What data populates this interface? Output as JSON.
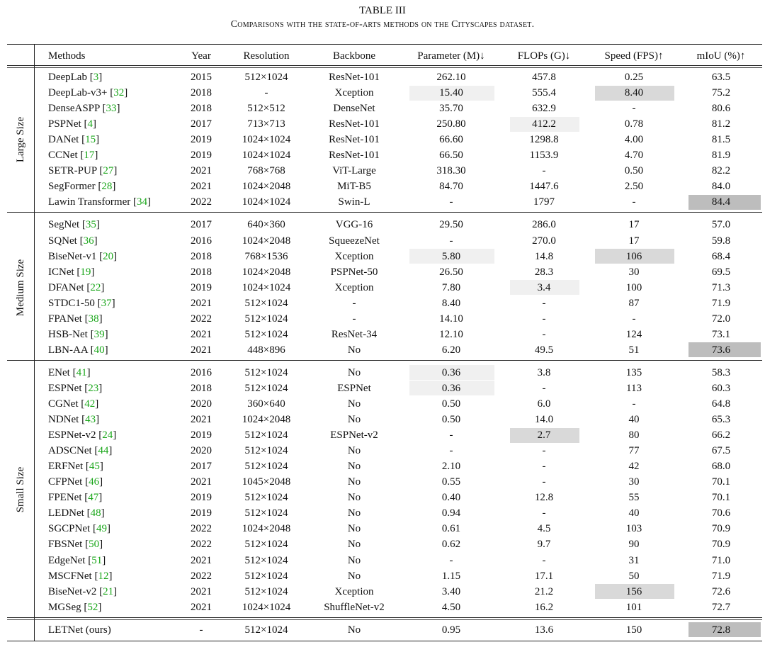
{
  "caption": {
    "title": "TABLE III",
    "subtitle": "Comparisons with the state-of-arts methods on the Cityscapes dataset."
  },
  "headers": [
    "Methods",
    "Year",
    "Resolution",
    "Backbone",
    "Parameter (M)↓",
    "FLOPs (G)↓",
    "Speed (FPS)↑",
    "mIoU (%)↑"
  ],
  "colors": {
    "highlight_light": "#f0f0f0",
    "highlight_mid": "#d9d9d9",
    "highlight_dark": "#bdbdbd",
    "ref": "#19a619"
  },
  "groups": [
    {
      "label": "Large Size",
      "rows": [
        {
          "method": "DeepLab",
          "ref": "3",
          "year": "2015",
          "res": "512×1024",
          "backbone": "ResNet-101",
          "params": "262.10",
          "flops": "457.8",
          "speed": "0.25",
          "miou": "63.5"
        },
        {
          "method": "DeepLab-v3+",
          "ref": "32",
          "year": "2018",
          "res": "-",
          "backbone": "Xception",
          "params": "15.40",
          "flops": "555.4",
          "speed": "8.40",
          "miou": "75.2",
          "hl": {
            "params": "light",
            "speed": "mid"
          }
        },
        {
          "method": "DenseASPP",
          "ref": "33",
          "year": "2018",
          "res": "512×512",
          "backbone": "DenseNet",
          "params": "35.70",
          "flops": "632.9",
          "speed": "-",
          "miou": "80.6"
        },
        {
          "method": "PSPNet",
          "ref": "4",
          "year": "2017",
          "res": "713×713",
          "backbone": "ResNet-101",
          "params": "250.80",
          "flops": "412.2",
          "speed": "0.78",
          "miou": "81.2",
          "hl": {
            "flops": "light"
          }
        },
        {
          "method": "DANet",
          "ref": "15",
          "year": "2019",
          "res": "1024×1024",
          "backbone": "ResNet-101",
          "params": "66.60",
          "flops": "1298.8",
          "speed": "4.00",
          "miou": "81.5"
        },
        {
          "method": "CCNet",
          "ref": "17",
          "year": "2019",
          "res": "1024×1024",
          "backbone": "ResNet-101",
          "params": "66.50",
          "flops": "1153.9",
          "speed": "4.70",
          "miou": "81.9"
        },
        {
          "method": "SETR-PUP",
          "ref": "27",
          "year": "2021",
          "res": "768×768",
          "backbone": "ViT-Large",
          "params": "318.30",
          "flops": "-",
          "speed": "0.50",
          "miou": "82.2"
        },
        {
          "method": "SegFormer",
          "ref": "28",
          "year": "2021",
          "res": "1024×2048",
          "backbone": "MiT-B5",
          "params": "84.70",
          "flops": "1447.6",
          "speed": "2.50",
          "miou": "84.0"
        },
        {
          "method": "Lawin Transformer",
          "ref": "34",
          "year": "2022",
          "res": "1024×1024",
          "backbone": "Swin-L",
          "params": "-",
          "flops": "1797",
          "speed": "-",
          "miou": "84.4",
          "hl": {
            "miou": "dark"
          }
        }
      ]
    },
    {
      "label": "Medium Size",
      "rows": [
        {
          "method": "SegNet",
          "ref": "35",
          "year": "2017",
          "res": "640×360",
          "backbone": "VGG-16",
          "params": "29.50",
          "flops": "286.0",
          "speed": "17",
          "miou": "57.0"
        },
        {
          "method": "SQNet",
          "ref": "36",
          "year": "2016",
          "res": "1024×2048",
          "backbone": "SqueezeNet",
          "params": "-",
          "flops": "270.0",
          "speed": "17",
          "miou": "59.8"
        },
        {
          "method": "BiseNet-v1",
          "ref": "20",
          "year": "2018",
          "res": "768×1536",
          "backbone": "Xception",
          "params": "5.80",
          "flops": "14.8",
          "speed": "106",
          "miou": "68.4",
          "hl": {
            "params": "light",
            "speed": "mid"
          }
        },
        {
          "method": "ICNet",
          "ref": "19",
          "year": "2018",
          "res": "1024×2048",
          "backbone": "PSPNet-50",
          "params": "26.50",
          "flops": "28.3",
          "speed": "30",
          "miou": "69.5"
        },
        {
          "method": "DFANet",
          "ref": "22",
          "year": "2019",
          "res": "1024×1024",
          "backbone": "Xception",
          "params": "7.80",
          "flops": "3.4",
          "speed": "100",
          "miou": "71.3",
          "hl": {
            "flops": "light"
          }
        },
        {
          "method": "STDC1-50",
          "ref": "37",
          "year": "2021",
          "res": "512×1024",
          "backbone": "-",
          "params": "8.40",
          "flops": "-",
          "speed": "87",
          "miou": "71.9"
        },
        {
          "method": "FPANet",
          "ref": "38",
          "year": "2022",
          "res": "512×1024",
          "backbone": "-",
          "params": "14.10",
          "flops": "-",
          "speed": "-",
          "miou": "72.0"
        },
        {
          "method": "HSB-Net",
          "ref": "39",
          "year": "2021",
          "res": "512×1024",
          "backbone": "ResNet-34",
          "params": "12.10",
          "flops": "-",
          "speed": "124",
          "miou": "73.1"
        },
        {
          "method": "LBN-AA",
          "ref": "40",
          "year": "2021",
          "res": "448×896",
          "backbone": "No",
          "params": "6.20",
          "flops": "49.5",
          "speed": "51",
          "miou": "73.6",
          "hl": {
            "miou": "dark"
          }
        }
      ]
    },
    {
      "label": "Small Size",
      "rows": [
        {
          "method": "ENet",
          "ref": "41",
          "year": "2016",
          "res": "512×1024",
          "backbone": "No",
          "params": "0.36",
          "flops": "3.8",
          "speed": "135",
          "miou": "58.3",
          "hl": {
            "params": "light"
          }
        },
        {
          "method": "ESPNet",
          "ref": "23",
          "year": "2018",
          "res": "512×1024",
          "backbone": "ESPNet",
          "params": "0.36",
          "flops": "-",
          "speed": "113",
          "miou": "60.3",
          "hl": {
            "params": "light"
          }
        },
        {
          "method": "CGNet",
          "ref": "42",
          "year": "2020",
          "res": "360×640",
          "backbone": "No",
          "params": "0.50",
          "flops": "6.0",
          "speed": "-",
          "miou": "64.8"
        },
        {
          "method": "NDNet",
          "ref": "43",
          "year": "2021",
          "res": "1024×2048",
          "backbone": "No",
          "params": "0.50",
          "flops": "14.0",
          "speed": "40",
          "miou": "65.3"
        },
        {
          "method": "ESPNet-v2",
          "ref": "24",
          "year": "2019",
          "res": "512×1024",
          "backbone": "ESPNet-v2",
          "params": "-",
          "flops": "2.7",
          "speed": "80",
          "miou": "66.2",
          "hl": {
            "flops": "mid"
          }
        },
        {
          "method": "ADSCNet",
          "ref": "44",
          "year": "2020",
          "res": "512×1024",
          "backbone": "No",
          "params": "-",
          "flops": "-",
          "speed": "77",
          "miou": "67.5"
        },
        {
          "method": "ERFNet",
          "ref": "45",
          "year": "2017",
          "res": "512×1024",
          "backbone": "No",
          "params": "2.10",
          "flops": "-",
          "speed": "42",
          "miou": "68.0"
        },
        {
          "method": "CFPNet",
          "ref": "46",
          "year": "2021",
          "res": "1045×2048",
          "backbone": "No",
          "params": "0.55",
          "flops": "-",
          "speed": "30",
          "miou": "70.1"
        },
        {
          "method": "FPENet",
          "ref": "47",
          "year": "2019",
          "res": "512×1024",
          "backbone": "No",
          "params": "0.40",
          "flops": "12.8",
          "speed": "55",
          "miou": "70.1"
        },
        {
          "method": "LEDNet",
          "ref": "48",
          "year": "2019",
          "res": "512×1024",
          "backbone": "No",
          "params": "0.94",
          "flops": "-",
          "speed": "40",
          "miou": "70.6"
        },
        {
          "method": "SGCPNet",
          "ref": "49",
          "year": "2022",
          "res": "1024×2048",
          "backbone": "No",
          "params": "0.61",
          "flops": "4.5",
          "speed": "103",
          "miou": "70.9"
        },
        {
          "method": "FBSNet",
          "ref": "50",
          "year": "2022",
          "res": "512×1024",
          "backbone": "No",
          "params": "0.62",
          "flops": "9.7",
          "speed": "90",
          "miou": "70.9"
        },
        {
          "method": "EdgeNet",
          "ref": "51",
          "year": "2021",
          "res": "512×1024",
          "backbone": "No",
          "params": "-",
          "flops": "-",
          "speed": "31",
          "miou": "71.0"
        },
        {
          "method": "MSCFNet",
          "ref": "12",
          "year": "2022",
          "res": "512×1024",
          "backbone": "No",
          "params": "1.15",
          "flops": "17.1",
          "speed": "50",
          "miou": "71.9"
        },
        {
          "method": "BiseNet-v2",
          "ref": "21",
          "year": "2021",
          "res": "512×1024",
          "backbone": "Xception",
          "params": "3.40",
          "flops": "21.2",
          "speed": "156",
          "miou": "72.6",
          "hl": {
            "speed": "mid"
          }
        },
        {
          "method": "MGSeg",
          "ref": "52",
          "year": "2021",
          "res": "1024×1024",
          "backbone": "ShuffleNet-v2",
          "params": "4.50",
          "flops": "16.2",
          "speed": "101",
          "miou": "72.7"
        }
      ]
    }
  ],
  "ours": {
    "method": "LETNet (ours)",
    "year": "-",
    "res": "512×1024",
    "backbone": "No",
    "params": "0.95",
    "flops": "13.6",
    "speed": "150",
    "miou": "72.8",
    "hl": {
      "miou": "dark"
    }
  }
}
